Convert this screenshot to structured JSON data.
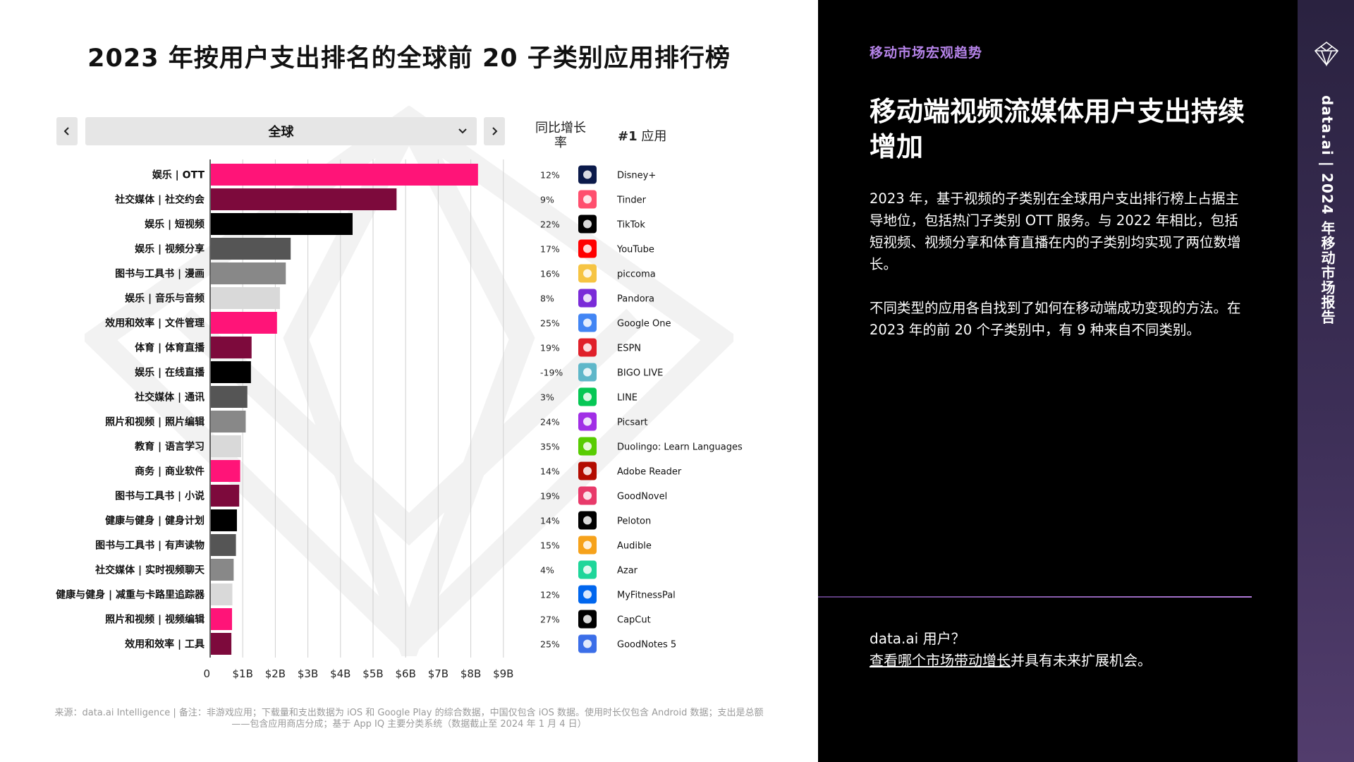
{
  "title": "2023 年按用户支出排名的全球前 20 子类别应用排行榜",
  "region_select": {
    "value": "全球"
  },
  "columns": {
    "growth_header": "同比增长率",
    "top_app_header_bold": "#1",
    "top_app_header_rest": " 应用"
  },
  "colors": {
    "pink": "#ff1478",
    "maroon": "#7d0a3c",
    "black": "#000000",
    "dark_gray": "#555555",
    "mid_gray": "#888888",
    "light_gray": "#d9d9d9",
    "accent_purple": "#b583e8"
  },
  "chart_data": {
    "type": "bar",
    "orientation": "horizontal",
    "categories": [
      "娱乐 | OTT",
      "社交媒体 | 社交约会",
      "娱乐 | 短视频",
      "娱乐 | 视频分享",
      "图书与工具书 | 漫画",
      "娱乐 | 音乐与音频",
      "效用和效率 | 文件管理",
      "体育 | 体育直播",
      "娱乐 | 在线直播",
      "社交媒体 | 通讯",
      "照片和视频 | 照片编辑",
      "教育 | 语言学习",
      "商务 | 商业软件",
      "图书与工具书 | 小说",
      "健康与健身 | 健身计划",
      "图书与工具书 | 有声读物",
      "社交媒体 | 实时视频聊天",
      "健康与健身 | 减重与卡路里追踪器",
      "照片和视频 | 视频编辑",
      "效用和效率 | 工具"
    ],
    "values": [
      8.2,
      5.7,
      4.35,
      2.45,
      2.3,
      2.12,
      2.03,
      1.25,
      1.23,
      1.12,
      1.07,
      0.93,
      0.9,
      0.87,
      0.8,
      0.77,
      0.7,
      0.66,
      0.65,
      0.63
    ],
    "bar_colors": [
      "pink",
      "maroon",
      "black",
      "dark_gray",
      "mid_gray",
      "light_gray",
      "pink",
      "maroon",
      "black",
      "dark_gray",
      "mid_gray",
      "light_gray",
      "pink",
      "maroon",
      "black",
      "dark_gray",
      "mid_gray",
      "light_gray",
      "pink",
      "maroon"
    ],
    "x_ticks": [
      "0",
      "$1B",
      "$2B",
      "$3B",
      "$4B",
      "$5B",
      "$6B",
      "$7B",
      "$8B",
      "$9B"
    ],
    "xlim": [
      0,
      9
    ],
    "grid": true,
    "growth": [
      "12%",
      "9%",
      "22%",
      "17%",
      "16%",
      "8%",
      "25%",
      "19%",
      "-19%",
      "3%",
      "24%",
      "35%",
      "14%",
      "19%",
      "14%",
      "15%",
      "4%",
      "12%",
      "27%",
      "25%"
    ],
    "top_apps": [
      "Disney+",
      "Tinder",
      "TikTok",
      "YouTube",
      "piccoma",
      "Pandora",
      "Google One",
      "ESPN",
      "BIGO LIVE",
      "LINE",
      "Picsart",
      "Duolingo: Learn Languages",
      "Adobe Reader",
      "GoodNovel",
      "Peloton",
      "Audible",
      "Azar",
      "MyFitnessPal",
      "CapCut",
      "GoodNotes 5"
    ],
    "app_icons": [
      "disney-plus-icon",
      "tinder-icon",
      "tiktok-icon",
      "youtube-icon",
      "piccoma-icon",
      "pandora-icon",
      "google-one-icon",
      "espn-icon",
      "bigo-live-icon",
      "line-icon",
      "picsart-icon",
      "duolingo-icon",
      "adobe-reader-icon",
      "goodnovel-icon",
      "peloton-icon",
      "audible-icon",
      "azar-icon",
      "myfitnesspal-icon",
      "capcut-icon",
      "goodnotes-icon"
    ],
    "app_icon_colors": [
      "#0b1a4a",
      "#ff4f6e",
      "#000000",
      "#ff0000",
      "#f6c443",
      "#7a2bd8",
      "#4285f4",
      "#e0202a",
      "#5fb7c9",
      "#06c755",
      "#a12ee6",
      "#58cc02",
      "#b30b00",
      "#e83a6a",
      "#000000",
      "#f6a21b",
      "#1ed69a",
      "#0066ee",
      "#000000",
      "#3b6ee8"
    ]
  },
  "footnote": {
    "line1": "来源：data.ai Intelligence | 备注：非游戏应用；下载量和支出数据为 iOS 和 Google Play 的综合数据，中国仅包含 iOS 数据。使用时长仅包含 Android 数据；支出是总额",
    "line2": "——包含应用商店分成；基于 App IQ 主要分类系统（数据截止至 2024 年 1 月 4 日）"
  },
  "right_panel": {
    "section_tag": "移动市场宏观趋势",
    "headline": "移动端视频流媒体用户支出持续增加",
    "para1": "2023 年，基于视频的子类别在全球用户支出排行榜上占据主导地位，包括热门子类别 OTT 服务。与 2022 年相比，包括短视频、视频分享和体育直播在内的子类别均实现了两位数增长。",
    "para2": "不同类型的应用各自找到了如何在移动端成功变现的方法。在 2023 年的前 20 个子类别中，有 9 种来自不同类别。",
    "cta_question": "data.ai 用户？",
    "cta_link": "查看哪个市场带动增长",
    "cta_rest": "并具有未来扩展机会。"
  },
  "side_band": {
    "logo_icon": "diamond-logo-icon",
    "text": "data.ai | 2024 年移动市场报告"
  }
}
